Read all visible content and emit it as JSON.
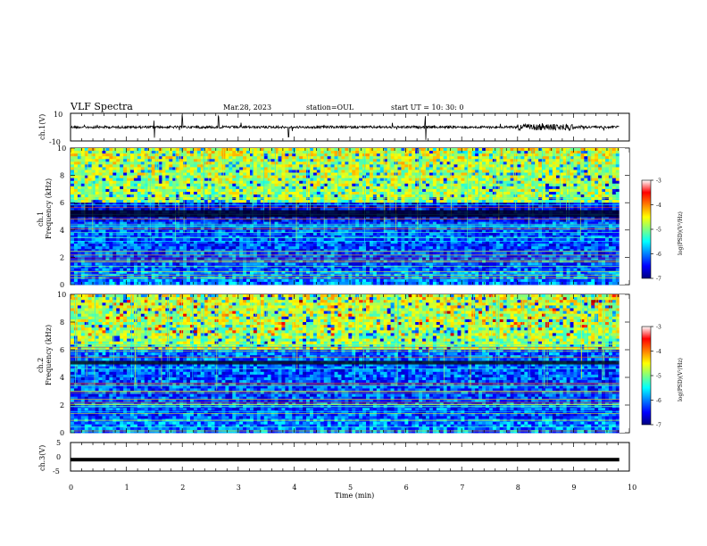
{
  "header": {
    "title": "VLF Spectra",
    "date": "Mar.28, 2023",
    "station": "station=OUL",
    "start": "start  UT =   10: 30: 0"
  },
  "chart_data": [
    {
      "type": "line",
      "panel": "ch1-waveform",
      "ylabel": "ch.1(V)",
      "ylim": [
        -10,
        10
      ],
      "yticks": [
        "10",
        "-10"
      ],
      "baseline": 0,
      "noise_burst_x_min": [
        8.0,
        9.0
      ],
      "spikes_x_min": [
        1.5,
        2.0,
        2.65,
        3.9,
        6.35
      ]
    },
    {
      "type": "heatmap",
      "panel": "ch1-spectrogram",
      "ylabel": "Frequency  (kHz)",
      "ylabel_channel": "ch.1",
      "ylim": [
        0,
        10
      ],
      "yticks": [
        "0",
        "2",
        "4",
        "6",
        "8",
        "10"
      ],
      "colorbar": {
        "label": "log(PSD)(V²/Hz)",
        "range": [
          -7,
          -3
        ],
        "ticks": [
          "-3",
          "-4",
          "-5",
          "-6",
          "-7"
        ]
      }
    },
    {
      "type": "heatmap",
      "panel": "ch2-spectrogram",
      "ylabel": "Frequency  (kHz)",
      "ylabel_channel": "ch.2",
      "ylim": [
        0,
        10
      ],
      "yticks": [
        "0",
        "2",
        "4",
        "6",
        "8",
        "10"
      ],
      "colorbar": {
        "label": "log(PSD)(V²/Hz)",
        "range": [
          -7,
          -3
        ],
        "ticks": [
          "-3",
          "-4",
          "-5",
          "-6",
          "-7"
        ]
      }
    },
    {
      "type": "line",
      "panel": "ch3-waveform",
      "ylabel": "ch.3(V)",
      "ylim": [
        -5,
        5
      ],
      "yticks": [
        "5",
        "0",
        "-5"
      ],
      "value": -1
    }
  ],
  "xaxis": {
    "label": "Time  (min)",
    "range": [
      0,
      10
    ],
    "ticks": [
      "0",
      "1",
      "2",
      "3",
      "4",
      "5",
      "6",
      "7",
      "8",
      "9",
      "10"
    ],
    "data_end": 9.82
  }
}
